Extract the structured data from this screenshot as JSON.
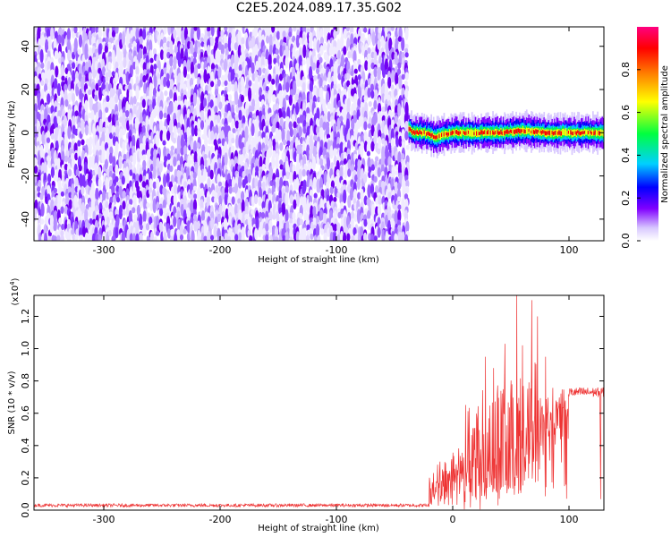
{
  "title": "C2E5.2024.089.17.35.G02",
  "chart_data": [
    {
      "type": "heatmap",
      "title": "C2E5.2024.089.17.35.G02",
      "xlabel": "Height of straight line (km)",
      "ylabel": "Frequency (Hz)",
      "xlim": [
        -360,
        130
      ],
      "ylim": [
        -50,
        49
      ],
      "xticks": [
        -300,
        -200,
        -100,
        0,
        100
      ],
      "xtick_labels": [
        "-300",
        "-200",
        "-100",
        "0",
        "100"
      ],
      "yticks": [
        -40,
        -20,
        0,
        20,
        40
      ],
      "ytick_labels": [
        "-40",
        "-20",
        "0",
        "20",
        "40"
      ],
      "noise_region": {
        "x_from": -360,
        "x_to": -38,
        "amplitude_range": [
          0.0,
          0.2
        ]
      },
      "signal_track": {
        "x_from": -38,
        "x_to": 130,
        "center_freq": [
          [
            -38,
            2
          ],
          [
            -35,
            0
          ],
          [
            -25,
            0
          ],
          [
            -15,
            -2
          ],
          [
            -8,
            -1
          ],
          [
            0,
            0
          ],
          [
            20,
            0
          ],
          [
            40,
            0
          ],
          [
            60,
            1
          ],
          [
            80,
            0
          ],
          [
            100,
            0
          ],
          [
            130,
            0
          ]
        ],
        "peak_amplitude": 1.0
      },
      "colorbar": {
        "label": "Normalized spectral amplitude",
        "range": [
          0,
          1
        ],
        "ticks": [
          0.0,
          0.2,
          0.4,
          0.6,
          0.8
        ],
        "tick_labels": [
          "0.0",
          "0.2",
          "0.4",
          "0.6",
          "0.8"
        ],
        "colors": [
          "#ffffff",
          "#d8c8ff",
          "#8000ff",
          "#0000ff",
          "#00d0ff",
          "#00ff40",
          "#ffff00",
          "#ff8000",
          "#ff0000",
          "#ff0080"
        ]
      }
    },
    {
      "type": "line",
      "xlabel": "Height of straight line (km)",
      "ylabel": "SNR (10 * v/v)",
      "y_multiplier": "(x10",
      "y_multiplier_exp": "4",
      "y_multiplier_close": ")",
      "xlim": [
        -360,
        130
      ],
      "ylim": [
        0,
        1.33
      ],
      "xticks": [
        -300,
        -200,
        -100,
        0,
        100
      ],
      "xtick_labels": [
        "-300",
        "-200",
        "-100",
        "0",
        "100"
      ],
      "yticks": [
        0.0,
        0.2,
        0.4,
        0.6,
        0.8,
        1.0,
        1.2
      ],
      "ytick_labels": [
        "0.0",
        "0.2",
        "0.4",
        "0.6",
        "0.8",
        "1.0",
        "1.2"
      ],
      "line_color": "#ee3333",
      "segments": [
        {
          "x_from": -360,
          "x_to": -20,
          "baseline": 0.03,
          "noise": 0.01
        },
        {
          "x_from": -20,
          "x_to": 10,
          "baseline_start": 0.15,
          "baseline_end": 0.3,
          "noise": 0.12
        },
        {
          "x_from": 10,
          "x_to": 75,
          "baseline_start": 0.3,
          "baseline_end": 0.55,
          "noise": 0.4
        },
        {
          "x_from": 75,
          "x_to": 100,
          "baseline_start": 0.55,
          "baseline_end": 0.7,
          "noise": 0.15
        },
        {
          "x_from": 100,
          "x_to": 130,
          "baseline": 0.73,
          "noise": 0.03
        }
      ],
      "peaks": [
        [
          55,
          1.33
        ],
        [
          68,
          1.3
        ],
        [
          73,
          1.2
        ],
        [
          45,
          1.03
        ],
        [
          60,
          1.02
        ],
        [
          80,
          0.95
        ],
        [
          35,
          0.88
        ],
        [
          28,
          0.95
        ],
        [
          127,
          0.45
        ]
      ]
    }
  ]
}
